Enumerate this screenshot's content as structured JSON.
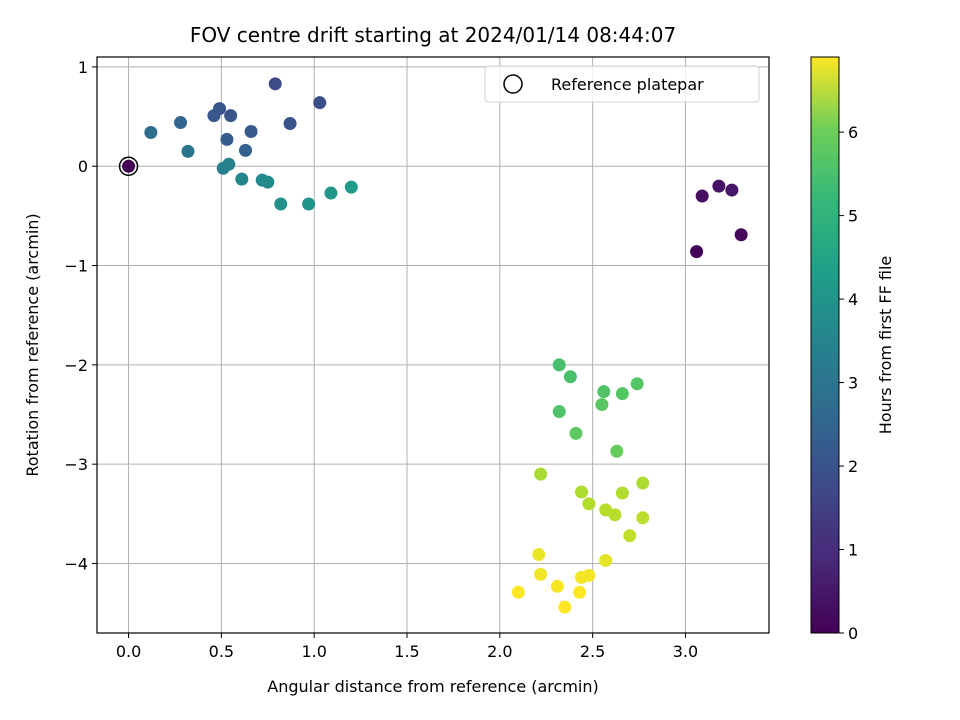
{
  "chart_data": {
    "type": "scatter",
    "title": "FOV centre drift starting at 2024/01/14 08:44:07",
    "xlabel": "Angular distance from reference (arcmin)",
    "ylabel": "Rotation from reference (arcmin)",
    "xlim": [
      -0.17,
      3.45
    ],
    "ylim": [
      -4.7,
      1.1
    ],
    "xticks": [
      0.0,
      0.5,
      1.0,
      1.5,
      2.0,
      2.5,
      3.0
    ],
    "xtick_labels": [
      "0.0",
      "0.5",
      "1.0",
      "1.5",
      "2.0",
      "2.5",
      "3.0"
    ],
    "yticks": [
      1,
      0,
      -1,
      -2,
      -3,
      -4
    ],
    "ytick_labels": [
      "1",
      "0",
      "−1",
      "−2",
      "−3",
      "−4"
    ],
    "grid": true,
    "colormap": "viridis",
    "colorbar": {
      "label": "Hours from first FF file",
      "range": [
        0,
        6.9
      ],
      "ticks": [
        0,
        1,
        2,
        3,
        4,
        5,
        6
      ],
      "tick_labels": [
        "0",
        "1",
        "2",
        "3",
        "4",
        "5",
        "6"
      ]
    },
    "legend": {
      "position": "top-right",
      "entries": [
        {
          "label": "Reference platepar",
          "marker": "open-circle"
        }
      ]
    },
    "reference_point": {
      "x": 0.0,
      "y": 0.0
    },
    "points": [
      {
        "x": 0.0,
        "y": 0.0,
        "c": 0.0
      },
      {
        "x": 3.06,
        "y": -0.86,
        "c": 0.05
      },
      {
        "x": 3.3,
        "y": -0.69,
        "c": 0.15
      },
      {
        "x": 3.09,
        "y": -0.3,
        "c": 0.25
      },
      {
        "x": 3.18,
        "y": -0.2,
        "c": 0.35
      },
      {
        "x": 3.25,
        "y": -0.24,
        "c": 0.45
      },
      {
        "x": 0.79,
        "y": 0.83,
        "c": 1.55
      },
      {
        "x": 1.03,
        "y": 0.64,
        "c": 1.65
      },
      {
        "x": 0.87,
        "y": 0.43,
        "c": 1.75
      },
      {
        "x": 0.49,
        "y": 0.58,
        "c": 1.8
      },
      {
        "x": 0.55,
        "y": 0.51,
        "c": 1.85
      },
      {
        "x": 0.46,
        "y": 0.51,
        "c": 1.9
      },
      {
        "x": 0.66,
        "y": 0.35,
        "c": 1.95
      },
      {
        "x": 0.53,
        "y": 0.27,
        "c": 2.0
      },
      {
        "x": 0.63,
        "y": 0.16,
        "c": 2.1
      },
      {
        "x": 0.28,
        "y": 0.44,
        "c": 2.25
      },
      {
        "x": 0.12,
        "y": 0.34,
        "c": 2.45
      },
      {
        "x": 0.32,
        "y": 0.15,
        "c": 2.7
      },
      {
        "x": 0.54,
        "y": 0.02,
        "c": 3.0
      },
      {
        "x": 0.51,
        "y": -0.02,
        "c": 3.05
      },
      {
        "x": 0.61,
        "y": -0.13,
        "c": 3.15
      },
      {
        "x": 0.72,
        "y": -0.14,
        "c": 3.25
      },
      {
        "x": 0.75,
        "y": -0.16,
        "c": 3.3
      },
      {
        "x": 0.82,
        "y": -0.38,
        "c": 3.45
      },
      {
        "x": 0.97,
        "y": -0.38,
        "c": 3.55
      },
      {
        "x": 1.09,
        "y": -0.27,
        "c": 3.65
      },
      {
        "x": 1.2,
        "y": -0.21,
        "c": 3.75
      },
      {
        "x": 2.32,
        "y": -2.0,
        "c": 4.85
      },
      {
        "x": 2.38,
        "y": -2.12,
        "c": 4.9
      },
      {
        "x": 2.32,
        "y": -2.47,
        "c": 4.95
      },
      {
        "x": 2.56,
        "y": -2.27,
        "c": 5.0
      },
      {
        "x": 2.74,
        "y": -2.19,
        "c": 5.05
      },
      {
        "x": 2.66,
        "y": -2.29,
        "c": 5.05
      },
      {
        "x": 2.55,
        "y": -2.4,
        "c": 5.1
      },
      {
        "x": 2.41,
        "y": -2.69,
        "c": 5.15
      },
      {
        "x": 2.63,
        "y": -2.87,
        "c": 5.25
      },
      {
        "x": 2.22,
        "y": -3.1,
        "c": 6.0
      },
      {
        "x": 2.44,
        "y": -3.28,
        "c": 6.05
      },
      {
        "x": 2.48,
        "y": -3.4,
        "c": 6.1
      },
      {
        "x": 2.57,
        "y": -3.46,
        "c": 6.15
      },
      {
        "x": 2.62,
        "y": -3.51,
        "c": 6.15
      },
      {
        "x": 2.66,
        "y": -3.29,
        "c": 6.1
      },
      {
        "x": 2.77,
        "y": -3.19,
        "c": 6.05
      },
      {
        "x": 2.77,
        "y": -3.54,
        "c": 6.2
      },
      {
        "x": 2.7,
        "y": -3.72,
        "c": 6.25
      },
      {
        "x": 2.21,
        "y": -3.91,
        "c": 6.7
      },
      {
        "x": 2.57,
        "y": -3.97,
        "c": 6.65
      },
      {
        "x": 2.22,
        "y": -4.11,
        "c": 6.75
      },
      {
        "x": 2.44,
        "y": -4.14,
        "c": 6.8
      },
      {
        "x": 2.48,
        "y": -4.12,
        "c": 6.8
      },
      {
        "x": 2.31,
        "y": -4.23,
        "c": 6.85
      },
      {
        "x": 2.1,
        "y": -4.29,
        "c": 6.9
      },
      {
        "x": 2.43,
        "y": -4.29,
        "c": 6.9
      },
      {
        "x": 2.35,
        "y": -4.44,
        "c": 6.9
      }
    ]
  }
}
